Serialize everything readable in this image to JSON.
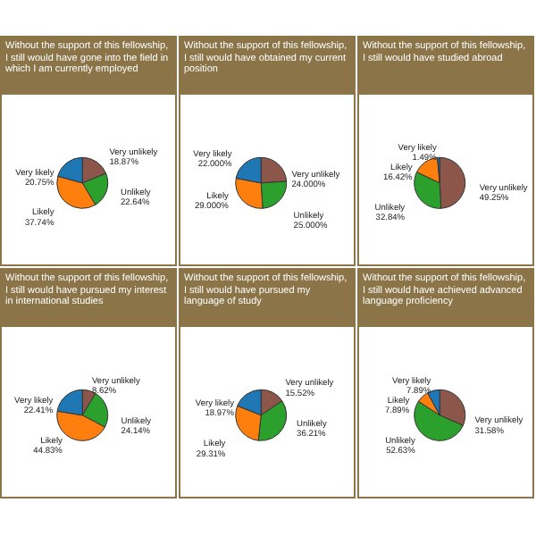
{
  "chart_data": [
    {
      "type": "pie",
      "title": "Without the support of this fellowship, I still would have gone into the field in which I am currently employed",
      "categories": [
        "Very unlikely",
        "Unlikely",
        "Likely",
        "Very likely"
      ],
      "values": [
        18.87,
        22.64,
        37.74,
        20.75
      ],
      "value_labels": [
        "18.87%",
        "22.64%",
        "37.74%",
        "20.75%"
      ],
      "colors": [
        "#8c564b",
        "#2ca02c",
        "#ff7f0e",
        "#1f77b4"
      ]
    },
    {
      "type": "pie",
      "title": "Without the support of this fellowship, I still would have obtained my current position",
      "categories": [
        "Very unlikely",
        "Unlikely",
        "Likely",
        "Very likely"
      ],
      "values": [
        24,
        25,
        29,
        22
      ],
      "value_labels": [
        "24.000%",
        "25.000%",
        "29.000%",
        "22.000%"
      ],
      "colors": [
        "#8c564b",
        "#2ca02c",
        "#ff7f0e",
        "#1f77b4"
      ]
    },
    {
      "type": "pie",
      "title": "Without the support of this fellowship, I still would have studied abroad",
      "categories": [
        "Very unlikely",
        "Unlikely",
        "Likely",
        "Very likely"
      ],
      "values": [
        49.25,
        32.84,
        16.42,
        1.49
      ],
      "value_labels": [
        "49.25%",
        "32.84%",
        "16.42%",
        "1.49%"
      ],
      "colors": [
        "#8c564b",
        "#2ca02c",
        "#ff7f0e",
        "#1f77b4"
      ]
    },
    {
      "type": "pie",
      "title": "Without the support of this fellowship, I still would have pursued my interest in international studies",
      "categories": [
        "Very unlikely",
        "Unlikely",
        "Likely",
        "Very likely"
      ],
      "values": [
        8.62,
        24.14,
        44.83,
        22.41
      ],
      "value_labels": [
        "8.62%",
        "24.14%",
        "44.83%",
        "22.41%"
      ],
      "colors": [
        "#8c564b",
        "#2ca02c",
        "#ff7f0e",
        "#1f77b4"
      ]
    },
    {
      "type": "pie",
      "title": "Without the support of this fellowship, I still would have pursued my language of study",
      "categories": [
        "Very unlikely",
        "Unlikely",
        "Likely",
        "Very likely"
      ],
      "values": [
        15.52,
        36.21,
        29.31,
        18.97
      ],
      "value_labels": [
        "15.52%",
        "36.21%",
        "29.31%",
        "18.97%"
      ],
      "colors": [
        "#8c564b",
        "#2ca02c",
        "#ff7f0e",
        "#1f77b4"
      ]
    },
    {
      "type": "pie",
      "title": "Without the support of this fellowship, I still would have achieved advanced language proficiency",
      "categories": [
        "Very unlikely",
        "Unlikely",
        "Likely",
        "Very likely"
      ],
      "values": [
        31.58,
        52.63,
        7.89,
        7.89
      ],
      "value_labels": [
        "31.58%",
        "52.63%",
        "7.89%",
        "7.89%"
      ],
      "colors": [
        "#8c564b",
        "#2ca02c",
        "#ff7f0e",
        "#1f77b4"
      ]
    }
  ]
}
